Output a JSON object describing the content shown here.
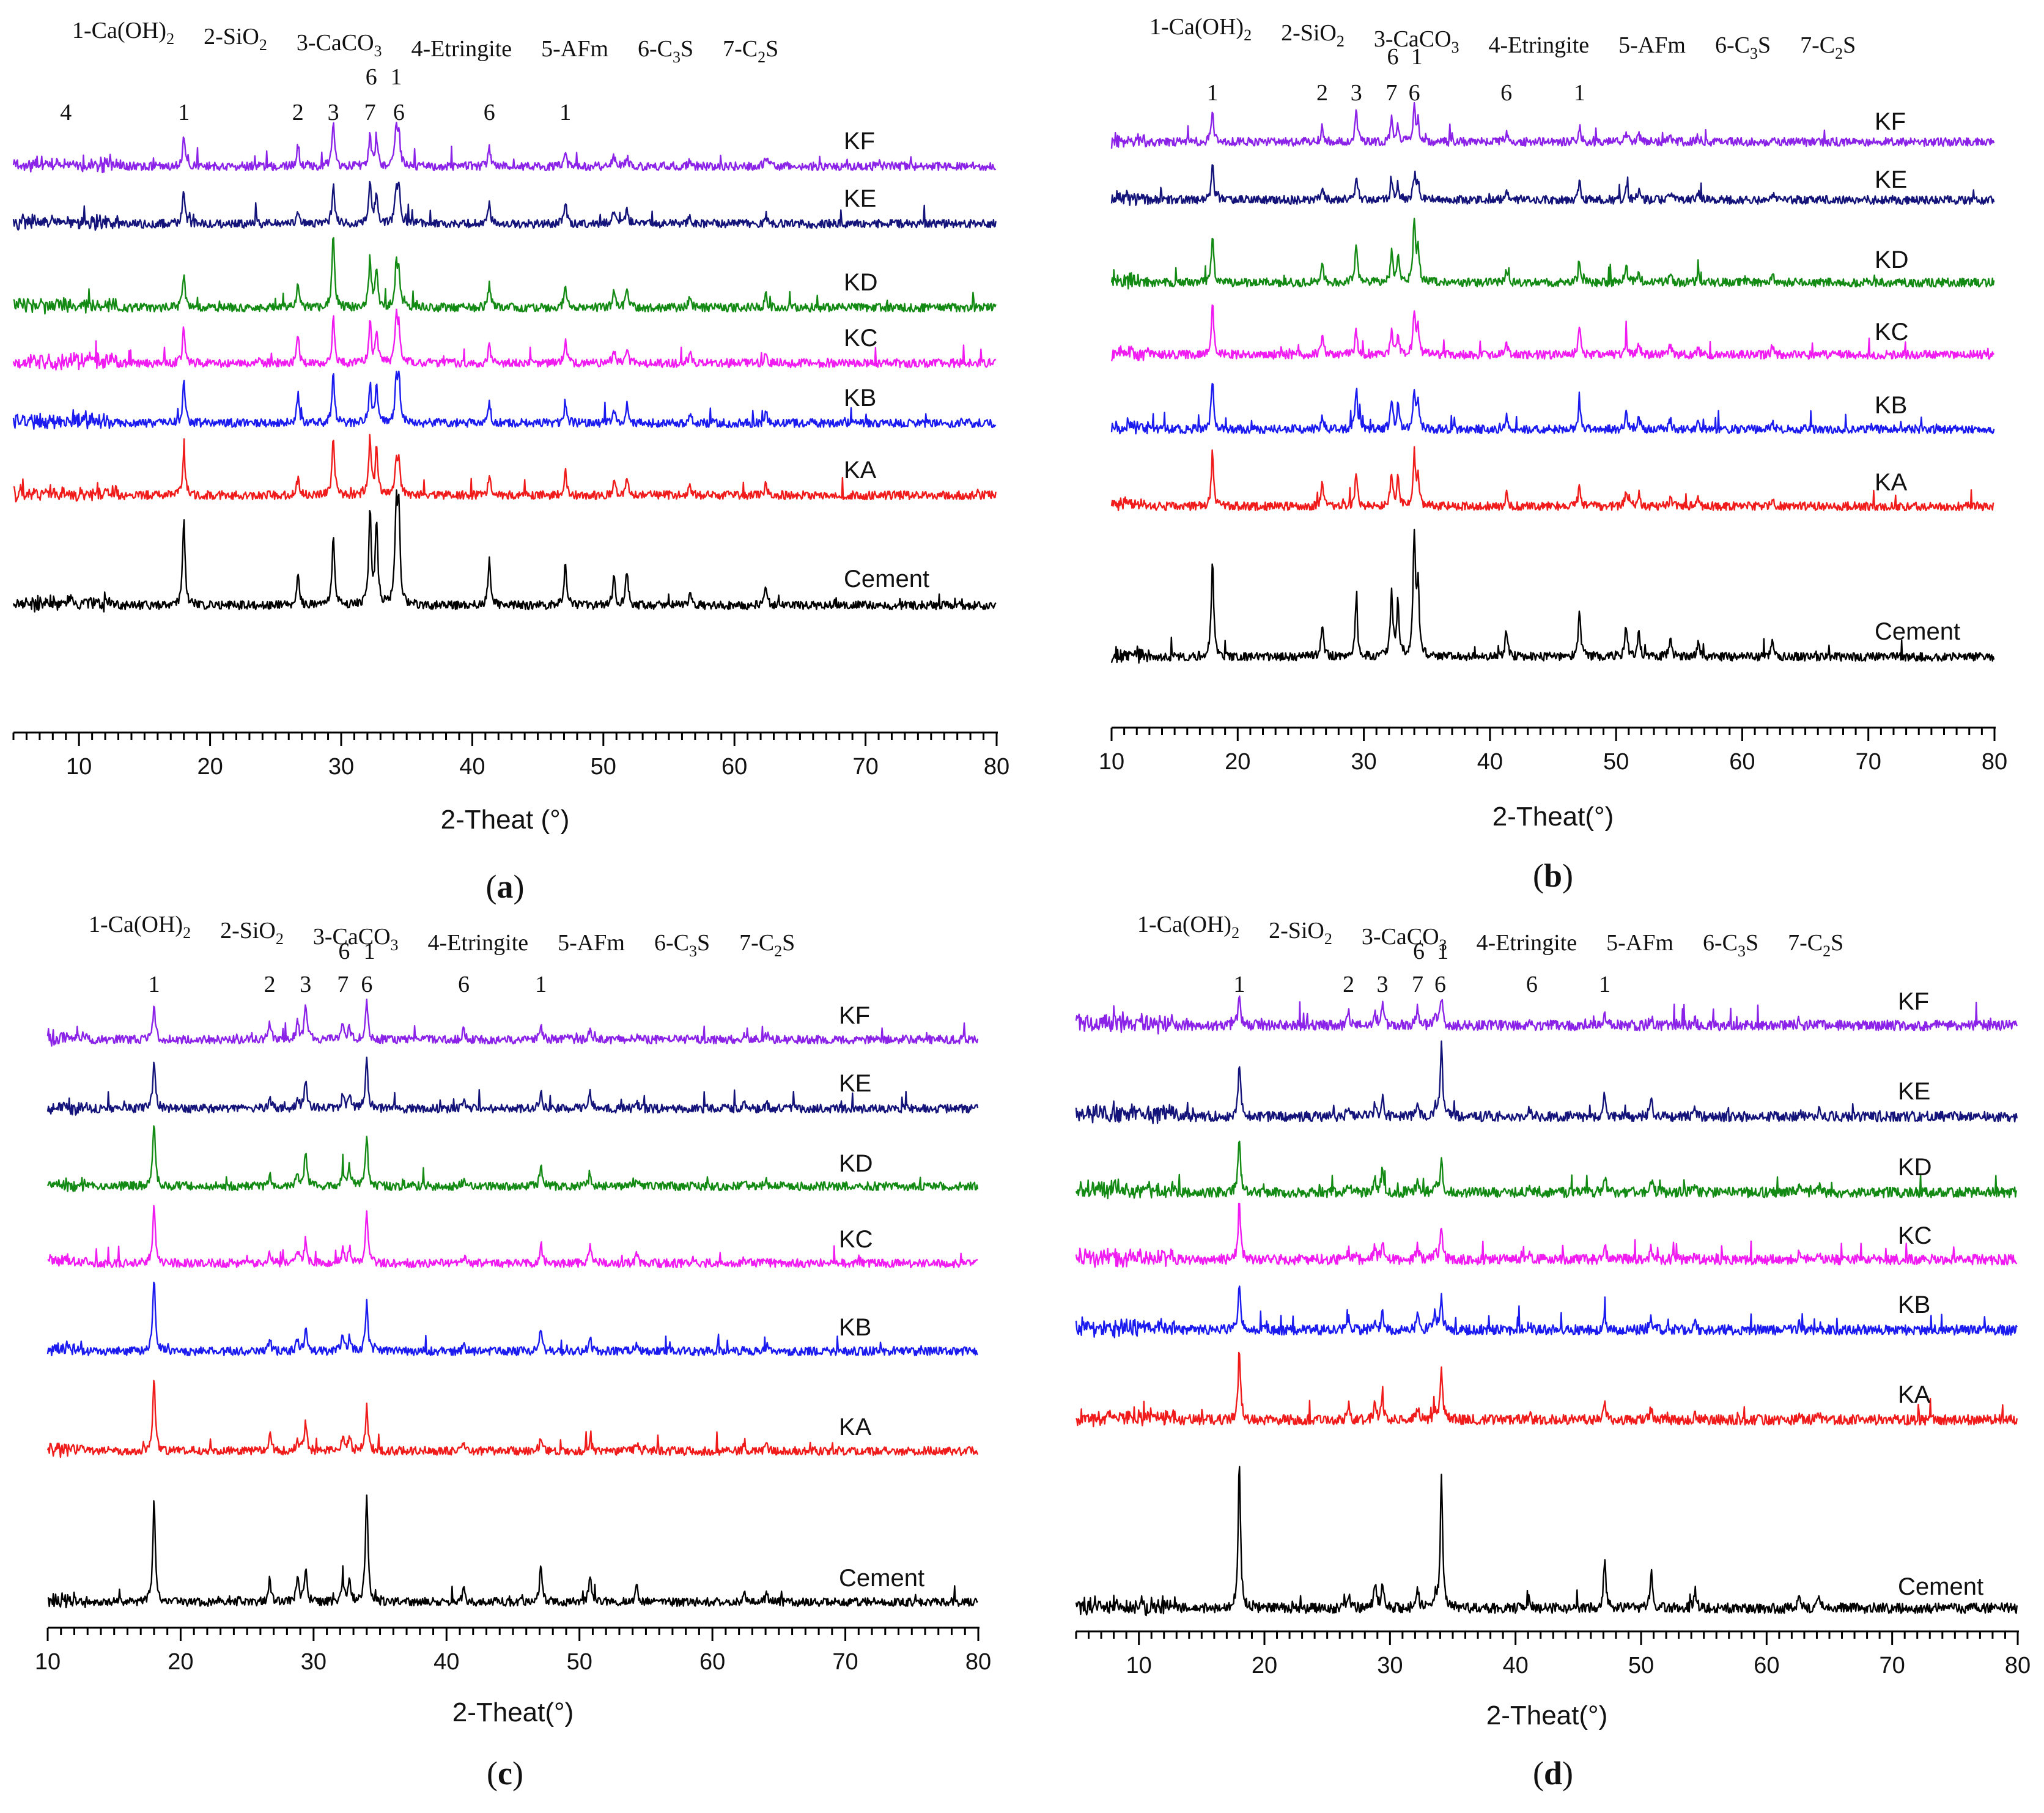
{
  "figure": {
    "legend_prefix_labels": [
      "1-Ca(OH)",
      "2-SiO",
      "3-CaCO",
      "4-Etringite",
      "5-AFm",
      "6-C",
      "7-C"
    ],
    "legend_items": [
      {
        "num": "1",
        "text": "Ca(OH)",
        "sub": "2"
      },
      {
        "num": "2",
        "text": "SiO",
        "sub": "2"
      },
      {
        "num": "3",
        "text": "CaCO",
        "sub": "3"
      },
      {
        "num": "4",
        "text": "Etringite",
        "sub": ""
      },
      {
        "num": "5",
        "text": "AFm",
        "sub": ""
      },
      {
        "num": "6",
        "text": "C",
        "sub": "3",
        "tail": "S"
      },
      {
        "num": "7",
        "text": "C",
        "sub": "2",
        "tail": "S"
      }
    ],
    "series_colors": {
      "KF": "#8B22E8",
      "KE": "#13137A",
      "KD": "#138A13",
      "KC": "#F01BF0",
      "KB": "#1B1BF0",
      "KA": "#F01B1B",
      "Cement": "#000000"
    }
  },
  "chart_data": [
    {
      "panel": "(a)",
      "panel_letter": "a",
      "type": "line",
      "xlabel": "2-Theat (°)",
      "ylabel": "",
      "xlim": [
        5,
        80
      ],
      "xticks": [
        10,
        20,
        30,
        40,
        50,
        60,
        70,
        80
      ],
      "series_order": [
        "KF",
        "KE",
        "KD",
        "KC",
        "KB",
        "KA",
        "Cement"
      ],
      "annotations": [
        {
          "label": "4",
          "x": 9
        },
        {
          "label": "1",
          "x": 18
        },
        {
          "label": "2",
          "x": 26.7
        },
        {
          "label": "3",
          "x": 29.4
        },
        {
          "label": "7",
          "x": 32.2
        },
        {
          "label": "6",
          "x": 32.3
        },
        {
          "label": "6",
          "x": 34.4
        },
        {
          "label": "1",
          "x": 34.2
        },
        {
          "label": "6",
          "x": 41.3
        },
        {
          "label": "1",
          "x": 47.1
        }
      ],
      "peaks": [
        {
          "x": 18.0,
          "Cement": 70,
          "KA": 38,
          "KB": 34,
          "KC": 30,
          "KD": 26,
          "KE": 28,
          "KF": 24
        },
        {
          "x": 26.7,
          "Cement": 28,
          "KA": 14,
          "KB": 24,
          "KC": 22,
          "KD": 22,
          "KE": 10,
          "KF": 18
        },
        {
          "x": 29.4,
          "Cement": 60,
          "KA": 48,
          "KB": 40,
          "KC": 38,
          "KD": 62,
          "KE": 34,
          "KF": 36
        },
        {
          "x": 32.2,
          "Cement": 78,
          "KA": 46,
          "KB": 32,
          "KC": 34,
          "KD": 40,
          "KE": 32,
          "KF": 24
        },
        {
          "x": 32.7,
          "Cement": 68,
          "KA": 38,
          "KB": 30,
          "KC": 26,
          "KD": 32,
          "KE": 24,
          "KF": 22
        },
        {
          "x": 34.2,
          "Cement": 76,
          "KA": 26,
          "KB": 32,
          "KC": 34,
          "KD": 32,
          "KE": 26,
          "KF": 30
        },
        {
          "x": 34.4,
          "Cement": 72,
          "KA": 26,
          "KB": 38,
          "KC": 28,
          "KD": 28,
          "KE": 30,
          "KF": 26
        },
        {
          "x": 41.3,
          "Cement": 36,
          "KA": 16,
          "KB": 18,
          "KC": 16,
          "KD": 20,
          "KE": 18,
          "KF": 16
        },
        {
          "x": 47.1,
          "Cement": 36,
          "KA": 22,
          "KB": 18,
          "KC": 18,
          "KD": 20,
          "KE": 20,
          "KF": 10
        },
        {
          "x": 50.8,
          "Cement": 24,
          "KA": 12,
          "KB": 12,
          "KC": 12,
          "KD": 14,
          "KE": 10,
          "KF": 8
        },
        {
          "x": 51.8,
          "Cement": 28,
          "KA": 14,
          "KB": 16,
          "KC": 12,
          "KD": 16,
          "KE": 12,
          "KF": 8
        },
        {
          "x": 56.6,
          "Cement": 12,
          "KA": 8,
          "KB": 8,
          "KC": 8,
          "KD": 8,
          "KE": 8,
          "KF": 6
        },
        {
          "x": 62.4,
          "Cement": 14,
          "KA": 10,
          "KB": 10,
          "KC": 8,
          "KD": 10,
          "KE": 8,
          "KF": 8
        }
      ]
    },
    {
      "panel": "(b)",
      "panel_letter": "b",
      "type": "line",
      "xlabel": "2-Theat(°)",
      "ylabel": "",
      "xlim": [
        10,
        80
      ],
      "xticks": [
        10,
        20,
        30,
        40,
        50,
        60,
        70,
        80
      ],
      "series_order": [
        "KF",
        "KE",
        "KD",
        "KC",
        "KB",
        "KA",
        "Cement"
      ],
      "annotations": [
        {
          "label": "1",
          "x": 18
        },
        {
          "label": "2",
          "x": 26.7
        },
        {
          "label": "3",
          "x": 29.4
        },
        {
          "label": "7",
          "x": 32.2
        },
        {
          "label": "6",
          "x": 32.3
        },
        {
          "label": "6",
          "x": 34.0
        },
        {
          "label": "1",
          "x": 34.2
        },
        {
          "label": "6",
          "x": 41.3
        },
        {
          "label": "1",
          "x": 47.1
        }
      ],
      "peaks": [
        {
          "x": 18.0,
          "Cement": 80,
          "KA": 44,
          "KB": 42,
          "KC": 44,
          "KD": 38,
          "KE": 28,
          "KF": 24
        },
        {
          "x": 26.7,
          "Cement": 28,
          "KA": 18,
          "KB": 12,
          "KC": 16,
          "KD": 14,
          "KE": 10,
          "KF": 12
        },
        {
          "x": 29.4,
          "Cement": 46,
          "KA": 30,
          "KB": 34,
          "KC": 20,
          "KD": 34,
          "KE": 20,
          "KF": 24
        },
        {
          "x": 32.2,
          "Cement": 54,
          "KA": 28,
          "KB": 22,
          "KC": 18,
          "KD": 24,
          "KE": 14,
          "KF": 18
        },
        {
          "x": 32.7,
          "Cement": 44,
          "KA": 22,
          "KB": 18,
          "KC": 16,
          "KD": 22,
          "KE": 12,
          "KF": 14
        },
        {
          "x": 34.0,
          "Cement": 100,
          "KA": 42,
          "KB": 30,
          "KC": 36,
          "KD": 50,
          "KE": 18,
          "KF": 28
        },
        {
          "x": 34.3,
          "Cement": 56,
          "KA": 22,
          "KB": 20,
          "KC": 20,
          "KD": 28,
          "KE": 14,
          "KF": 16
        },
        {
          "x": 41.3,
          "Cement": 22,
          "KA": 10,
          "KB": 10,
          "KC": 10,
          "KD": 10,
          "KE": 8,
          "KF": 8
        },
        {
          "x": 47.1,
          "Cement": 40,
          "KA": 18,
          "KB": 20,
          "KC": 22,
          "KD": 18,
          "KE": 14,
          "KF": 12
        },
        {
          "x": 50.8,
          "Cement": 26,
          "KA": 12,
          "KB": 12,
          "KC": 10,
          "KD": 16,
          "KE": 10,
          "KF": 8
        },
        {
          "x": 51.8,
          "Cement": 20,
          "KA": 10,
          "KB": 10,
          "KC": 8,
          "KD": 10,
          "KE": 8,
          "KF": 6
        },
        {
          "x": 54.3,
          "Cement": 16,
          "KA": 8,
          "KB": 8,
          "KC": 8,
          "KD": 8,
          "KE": 6,
          "KF": 6
        },
        {
          "x": 56.5,
          "Cement": 12,
          "KA": 6,
          "KB": 6,
          "KC": 6,
          "KD": 6,
          "KE": 6,
          "KF": 4
        },
        {
          "x": 62.4,
          "Cement": 12,
          "KA": 6,
          "KB": 6,
          "KC": 6,
          "KD": 6,
          "KE": 6,
          "KF": 4
        }
      ]
    },
    {
      "panel": "(c)",
      "panel_letter": "c",
      "type": "line",
      "xlabel": "2-Theat(°)",
      "ylabel": "",
      "xlim": [
        10,
        80
      ],
      "xticks": [
        10,
        20,
        30,
        40,
        50,
        60,
        70,
        80
      ],
      "series_order": [
        "KF",
        "KE",
        "KD",
        "KC",
        "KB",
        "KA",
        "Cement"
      ],
      "annotations": [
        {
          "label": "1",
          "x": 18
        },
        {
          "label": "2",
          "x": 26.7
        },
        {
          "label": "3",
          "x": 29.4
        },
        {
          "label": "7",
          "x": 32.2
        },
        {
          "label": "6",
          "x": 32.3
        },
        {
          "label": "6",
          "x": 34.0
        },
        {
          "label": "1",
          "x": 34.2
        },
        {
          "label": "6",
          "x": 41.3
        },
        {
          "label": "1",
          "x": 47.1
        }
      ],
      "peaks": [
        {
          "x": 18.0,
          "Cement": 82,
          "KA": 60,
          "KB": 60,
          "KC": 50,
          "KD": 52,
          "KE": 40,
          "KF": 26
        },
        {
          "x": 26.7,
          "Cement": 18,
          "KA": 14,
          "KB": 10,
          "KC": 10,
          "KD": 10,
          "KE": 10,
          "KF": 14
        },
        {
          "x": 28.8,
          "Cement": 22,
          "KA": 10,
          "KB": 10,
          "KC": 10,
          "KD": 10,
          "KE": 10,
          "KF": 14
        },
        {
          "x": 29.4,
          "Cement": 28,
          "KA": 24,
          "KB": 18,
          "KC": 20,
          "KD": 28,
          "KE": 22,
          "KF": 30
        },
        {
          "x": 32.2,
          "Cement": 18,
          "KA": 12,
          "KB": 14,
          "KC": 12,
          "KD": 14,
          "KE": 12,
          "KF": 12
        },
        {
          "x": 32.7,
          "Cement": 16,
          "KA": 12,
          "KB": 10,
          "KC": 12,
          "KD": 16,
          "KE": 12,
          "KF": 10
        },
        {
          "x": 34.0,
          "Cement": 90,
          "KA": 36,
          "KB": 40,
          "KC": 40,
          "KD": 40,
          "KE": 40,
          "KF": 32
        },
        {
          "x": 41.3,
          "Cement": 10,
          "KA": 6,
          "KB": 6,
          "KC": 6,
          "KD": 6,
          "KE": 6,
          "KF": 8
        },
        {
          "x": 47.1,
          "Cement": 32,
          "KA": 12,
          "KB": 20,
          "KC": 16,
          "KD": 16,
          "KE": 14,
          "KF": 10
        },
        {
          "x": 50.8,
          "Cement": 22,
          "KA": 10,
          "KB": 12,
          "KC": 16,
          "KD": 10,
          "KE": 14,
          "KF": 8
        },
        {
          "x": 54.3,
          "Cement": 12,
          "KA": 6,
          "KB": 6,
          "KC": 8,
          "KD": 6,
          "KE": 6,
          "KF": 4
        },
        {
          "x": 62.4,
          "Cement": 8,
          "KA": 4,
          "KB": 4,
          "KC": 4,
          "KD": 4,
          "KE": 4,
          "KF": 4
        },
        {
          "x": 64.1,
          "Cement": 8,
          "KA": 4,
          "KB": 4,
          "KC": 4,
          "KD": 4,
          "KE": 4,
          "KF": 4
        }
      ]
    },
    {
      "panel": "(d)",
      "panel_letter": "d",
      "type": "line",
      "xlabel": "2-Theat(°)",
      "ylabel": "",
      "xlim": [
        5,
        80
      ],
      "xticks": [
        10,
        20,
        30,
        40,
        50,
        60,
        70,
        80
      ],
      "series_order": [
        "KF",
        "KE",
        "KD",
        "KC",
        "KB",
        "KA",
        "Cement"
      ],
      "annotations": [
        {
          "label": "1",
          "x": 18
        },
        {
          "label": "2",
          "x": 26.7
        },
        {
          "label": "3",
          "x": 29.4
        },
        {
          "label": "7",
          "x": 32.2
        },
        {
          "label": "6",
          "x": 32.3
        },
        {
          "label": "6",
          "x": 34.0
        },
        {
          "label": "1",
          "x": 34.2
        },
        {
          "label": "6",
          "x": 41.3
        },
        {
          "label": "1",
          "x": 47.1
        }
      ],
      "peaks": [
        {
          "x": 18.0,
          "Cement": 100,
          "KA": 48,
          "KB": 34,
          "KC": 40,
          "KD": 38,
          "KE": 38,
          "KF": 22
        },
        {
          "x": 26.7,
          "Cement": 10,
          "KA": 10,
          "KB": 6,
          "KC": 6,
          "KD": 6,
          "KE": 8,
          "KF": 8
        },
        {
          "x": 28.8,
          "Cement": 18,
          "KA": 10,
          "KB": 8,
          "KC": 8,
          "KD": 8,
          "KE": 8,
          "KF": 10
        },
        {
          "x": 29.4,
          "Cement": 18,
          "KA": 16,
          "KB": 12,
          "KC": 12,
          "KD": 18,
          "KE": 12,
          "KF": 14
        },
        {
          "x": 32.2,
          "Cement": 14,
          "KA": 8,
          "KB": 10,
          "KC": 10,
          "KD": 10,
          "KE": 8,
          "KF": 12
        },
        {
          "x": 33.6,
          "Cement": 8,
          "KA": 6,
          "KB": 12,
          "KC": 6,
          "KD": 6,
          "KE": 6,
          "KF": 6
        },
        {
          "x": 34.1,
          "Cement": 90,
          "KA": 36,
          "KB": 22,
          "KC": 24,
          "KD": 24,
          "KE": 48,
          "KF": 18
        },
        {
          "x": 41.1,
          "Cement": 8,
          "KA": 4,
          "KB": 4,
          "KC": 4,
          "KD": 4,
          "KE": 4,
          "KF": 4
        },
        {
          "x": 47.1,
          "Cement": 34,
          "KA": 12,
          "KB": 10,
          "KC": 10,
          "KD": 12,
          "KE": 16,
          "KF": 6
        },
        {
          "x": 50.8,
          "Cement": 22,
          "KA": 8,
          "KB": 10,
          "KC": 8,
          "KD": 10,
          "KE": 14,
          "KF": 6
        },
        {
          "x": 54.3,
          "Cement": 12,
          "KA": 4,
          "KB": 4,
          "KC": 4,
          "KD": 4,
          "KE": 6,
          "KF": 4
        },
        {
          "x": 62.6,
          "Cement": 8,
          "KA": 4,
          "KB": 4,
          "KC": 4,
          "KD": 4,
          "KE": 4,
          "KF": 4
        },
        {
          "x": 64.2,
          "Cement": 8,
          "KA": 4,
          "KB": 4,
          "KC": 4,
          "KD": 4,
          "KE": 4,
          "KF": 4
        }
      ]
    }
  ]
}
